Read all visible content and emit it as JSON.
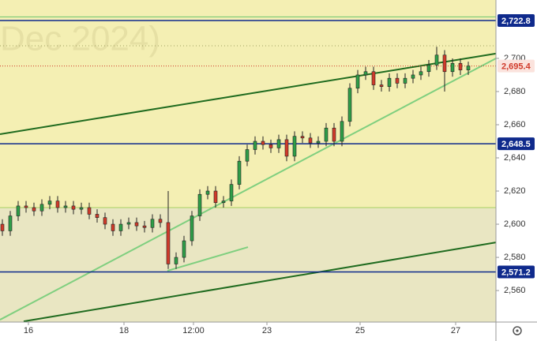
{
  "chart_data": {
    "type": "candlestick",
    "watermark": "Dec 2024)",
    "x": [
      0,
      1,
      2,
      3,
      4,
      5,
      6,
      7,
      8,
      9,
      10,
      11,
      12,
      13,
      14,
      15,
      16,
      17,
      18,
      19,
      20,
      21,
      22,
      23,
      24,
      25,
      26,
      27,
      28,
      29,
      30,
      31,
      32,
      33,
      34,
      35,
      36,
      37,
      38,
      39,
      40,
      41,
      42,
      43,
      44,
      45,
      46,
      47,
      48,
      49,
      50,
      51,
      52,
      53,
      54,
      55,
      56,
      57,
      58,
      59
    ],
    "open": [
      2600,
      2596,
      2605,
      2611,
      2610,
      2608,
      2612,
      2614,
      2610,
      2611,
      2609,
      2610,
      2606,
      2604,
      2600,
      2596,
      2600,
      2601,
      2599,
      2598,
      2603,
      2601,
      2576,
      2580,
      2590,
      2605,
      2618,
      2620,
      2613,
      2614,
      2624,
      2638,
      2645,
      2650,
      2648,
      2646,
      2651,
      2641,
      2653,
      2652,
      2649,
      2650,
      2658,
      2650,
      2662,
      2682,
      2690,
      2692,
      2684,
      2683,
      2688,
      2685,
      2688,
      2690,
      2692,
      2696,
      2702,
      2692,
      2697,
      2693
    ],
    "high": [
      2603,
      2608,
      2614,
      2614,
      2613,
      2615,
      2617,
      2617,
      2614,
      2614,
      2613,
      2613,
      2609,
      2607,
      2603,
      2603,
      2604,
      2604,
      2602,
      2606,
      2606,
      2620,
      2583,
      2593,
      2608,
      2621,
      2623,
      2623,
      2617,
      2627,
      2641,
      2648,
      2653,
      2653,
      2651,
      2654,
      2654,
      2656,
      2656,
      2655,
      2653,
      2661,
      2661,
      2665,
      2685,
      2693,
      2695,
      2695,
      2687,
      2691,
      2691,
      2691,
      2693,
      2695,
      2699,
      2707,
      2705,
      2700,
      2700,
      2698
    ],
    "low": [
      2593,
      2593,
      2602,
      2607,
      2605,
      2605,
      2609,
      2607,
      2607,
      2606,
      2606,
      2603,
      2601,
      2597,
      2593,
      2593,
      2597,
      2596,
      2595,
      2595,
      2598,
      2573,
      2573,
      2577,
      2587,
      2602,
      2615,
      2610,
      2610,
      2611,
      2621,
      2635,
      2642,
      2645,
      2643,
      2643,
      2638,
      2638,
      2649,
      2646,
      2646,
      2647,
      2647,
      2647,
      2659,
      2679,
      2687,
      2681,
      2680,
      2680,
      2682,
      2682,
      2685,
      2687,
      2689,
      2693,
      2680,
      2689,
      2690,
      2690
    ],
    "close": [
      2596,
      2605,
      2611,
      2610,
      2608,
      2612,
      2614,
      2610,
      2611,
      2609,
      2610,
      2606,
      2604,
      2600,
      2596,
      2600,
      2601,
      2599,
      2598,
      2603,
      2601,
      2576,
      2580,
      2590,
      2605,
      2618,
      2620,
      2613,
      2614,
      2624,
      2638,
      2645,
      2650,
      2648,
      2646,
      2651,
      2641,
      2653,
      2652,
      2649,
      2650,
      2658,
      2650,
      2662,
      2682,
      2690,
      2692,
      2684,
      2683,
      2688,
      2685,
      2688,
      2690,
      2692,
      2696,
      2702,
      2692,
      2697,
      2693,
      2695.4
    ],
    "up_color": "#2e9e48",
    "down_color": "#d03a2a",
    "xlim": [
      -0.3,
      62.5
    ],
    "ylim": [
      2541,
      2735.2
    ],
    "xticks": [
      {
        "value": 3.3,
        "label": "16"
      },
      {
        "value": 15.4,
        "label": "18"
      },
      {
        "value": 24.2,
        "label": "12:00"
      },
      {
        "value": 33.5,
        "label": "23"
      },
      {
        "value": 45.3,
        "label": "25"
      },
      {
        "value": 57.4,
        "label": "27"
      }
    ],
    "yticks": [
      {
        "value": 2560,
        "label": "2,560"
      },
      {
        "value": 2580,
        "label": "2,580"
      },
      {
        "value": 2600,
        "label": "2,600"
      },
      {
        "value": 2620,
        "label": "2,620"
      },
      {
        "value": 2640,
        "label": "2,640"
      },
      {
        "value": 2660,
        "label": "2,660"
      },
      {
        "value": 2680,
        "label": "2,680"
      },
      {
        "value": 2700,
        "label": "2,700"
      }
    ],
    "levels": [
      {
        "value": 2722.8,
        "label": "2,722.8",
        "color": "#0f2a8c"
      },
      {
        "value": 2648.5,
        "label": "2,648.5",
        "color": "#0f2a8c"
      },
      {
        "value": 2571.2,
        "label": "2,571.2",
        "color": "#0f2a8c"
      },
      {
        "value": 2695.4,
        "label": "2,695.4",
        "color": "#d03a2a",
        "dotted": true
      }
    ],
    "hlines": [
      {
        "value": 2725,
        "color": "#6cc46c"
      },
      {
        "value": 2610,
        "color": "#a8d060"
      },
      {
        "value": 2707.6,
        "color": "#a0a060",
        "dotted": true
      }
    ],
    "trendlines": [
      {
        "x": [
          -0.3,
          62.5
        ],
        "y": [
          2654.3,
          2702.9
        ],
        "color": "#1f6b1f"
      },
      {
        "x": [
          2.7,
          62.5
        ],
        "y": [
          2541.4,
          2589
        ],
        "color": "#1f6b1f"
      },
      {
        "x": [
          -0.3,
          62.5
        ],
        "y": [
          2542.4,
          2700
        ],
        "color": "#7fcf7f"
      },
      {
        "x": [
          20.9,
          31.1
        ],
        "y": [
          2571.9,
          2586.2
        ],
        "color": "#7fcf7f"
      }
    ]
  }
}
